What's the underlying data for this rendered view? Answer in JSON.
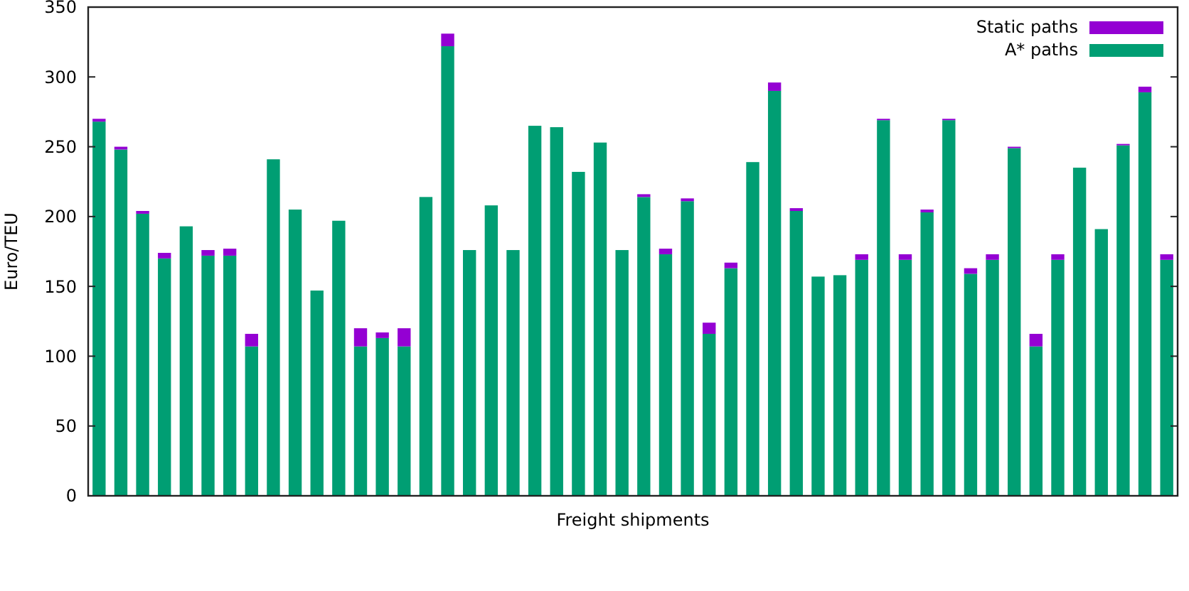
{
  "chart_data": {
    "type": "bar",
    "stacked": true,
    "xlabel": "Freight shipments",
    "ylabel": "Euro/TEU",
    "categories": [
      null,
      null,
      null,
      null,
      null,
      null,
      null,
      null,
      null,
      null,
      null,
      null,
      null,
      null,
      null,
      null,
      null,
      null,
      null,
      null,
      null,
      null,
      null,
      null,
      null,
      null,
      null,
      null,
      null,
      null,
      null,
      null,
      null,
      null,
      null,
      null,
      null,
      null,
      null,
      null,
      null,
      null,
      null,
      null,
      null,
      null,
      null,
      null,
      null,
      null
    ],
    "series": [
      {
        "name": "A* paths",
        "color": "#009e73",
        "values": [
          268,
          248,
          202,
          170,
          193,
          172,
          172,
          107,
          241,
          205,
          147,
          197,
          107,
          113,
          107,
          214,
          322,
          176,
          208,
          176,
          265,
          264,
          232,
          253,
          176,
          214,
          173,
          211,
          116,
          163,
          239,
          290,
          204,
          157,
          158,
          169,
          269,
          169,
          203,
          269,
          159,
          169,
          249,
          107,
          169,
          235,
          191,
          251,
          289,
          169
        ]
      },
      {
        "name": "Static paths",
        "color": "#9400d3",
        "values": [
          2,
          2,
          2,
          4,
          0,
          4,
          5,
          9,
          0,
          0,
          0,
          0,
          13,
          4,
          13,
          0,
          9,
          0,
          0,
          0,
          0,
          0,
          0,
          0,
          0,
          2,
          4,
          2,
          8,
          4,
          0,
          6,
          2,
          0,
          0,
          4,
          1,
          4,
          2,
          1,
          4,
          4,
          1,
          9,
          4,
          0,
          0,
          1,
          4,
          4
        ]
      }
    ],
    "ylim": [
      0,
      350
    ],
    "yticks": [
      0,
      50,
      100,
      150,
      200,
      250,
      300,
      350
    ],
    "legend": "top right",
    "grid": false
  }
}
